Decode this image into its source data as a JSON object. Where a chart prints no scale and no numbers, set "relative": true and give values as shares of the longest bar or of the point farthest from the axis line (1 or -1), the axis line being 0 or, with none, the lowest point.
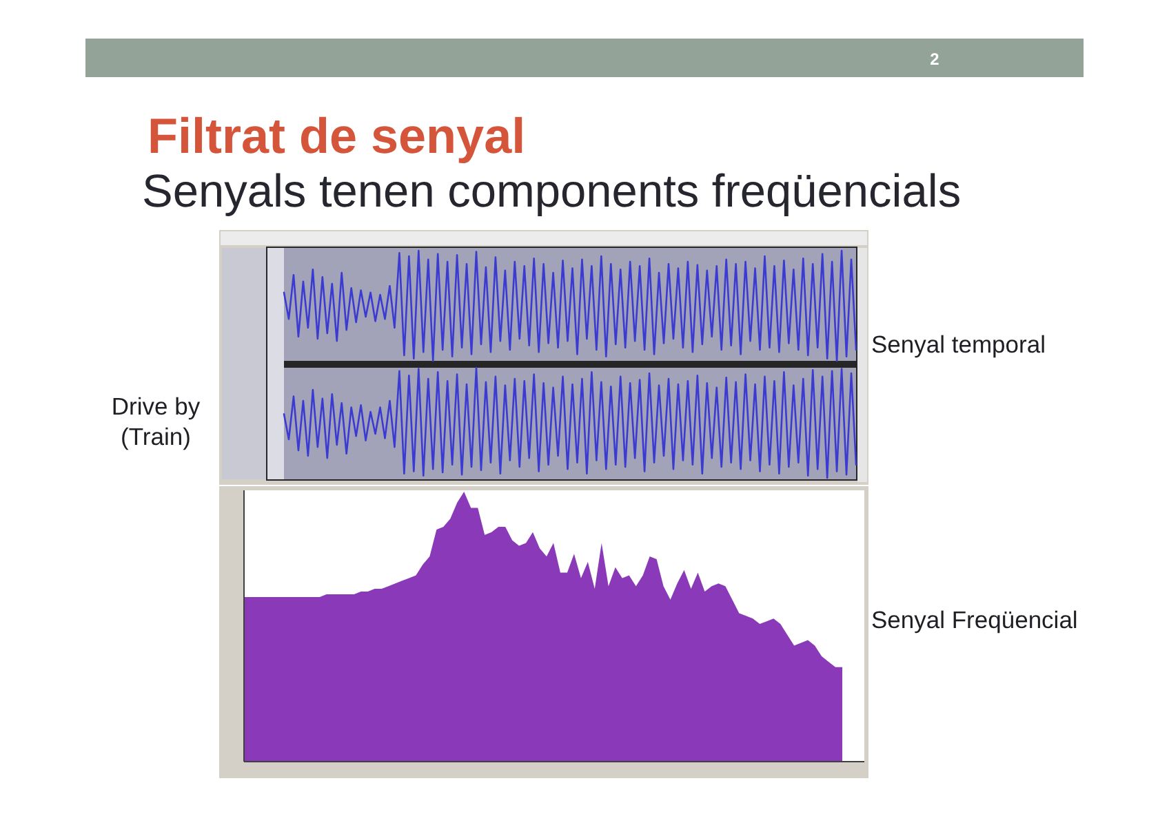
{
  "chart_data": [
    {
      "type": "line",
      "relative": true,
      "title": "Filtrat de senyal",
      "subtitle": "Senyals tenen components freqüencials",
      "annotations": [
        "2",
        "Senyal temporal"
      ],
      "categories": [
        null,
        null,
        null,
        null,
        null,
        null,
        null,
        null,
        null,
        null,
        null,
        null,
        null,
        null,
        null,
        null,
        null,
        null,
        null,
        null,
        null,
        null,
        null,
        null,
        null,
        null,
        null,
        null,
        null,
        null,
        null,
        null,
        null,
        null,
        null,
        null,
        null,
        null,
        null,
        null,
        null,
        null,
        null,
        null,
        null,
        null,
        null,
        null,
        null,
        null,
        null,
        null,
        null,
        null,
        null,
        null,
        null,
        null,
        null,
        null,
        null,
        null,
        null,
        null,
        null,
        null,
        null,
        null,
        null,
        null,
        null,
        null,
        null,
        null,
        null,
        null,
        null,
        null,
        null,
        null,
        null,
        null,
        null,
        null,
        null,
        null,
        null,
        null,
        null,
        null,
        null,
        null,
        null,
        null,
        null,
        null,
        null,
        null,
        null,
        null,
        null,
        null,
        null,
        null,
        null,
        null,
        null,
        null,
        null,
        null,
        null,
        null,
        null,
        null,
        null,
        null,
        null,
        null,
        null,
        null
      ],
      "series": [
        {
          "color": "#3b3bd1",
          "values": [
            0.62,
            0.38,
            0.78,
            0.22,
            0.72,
            0.3,
            0.83,
            0.2,
            0.76,
            0.25,
            0.7,
            0.18,
            0.8,
            0.28,
            0.66,
            0.35,
            0.64,
            0.4,
            0.62,
            0.36,
            0.6,
            0.38,
            0.68,
            0.3,
            0.98,
            0.05,
            0.95,
            0.02,
            1,
            0.08,
            0.92,
            0,
            0.97,
            0.1,
            0.9,
            0.04,
            0.96,
            0.12,
            0.88,
            0.06,
            0.99,
            0.15,
            0.85,
            0.08,
            0.94,
            0.18,
            0.82,
            0.1,
            0.9,
            0.2,
            0.86,
            0.14,
            0.93,
            0.08,
            0.88,
            0.16,
            0.8,
            0.12,
            0.91,
            0.18,
            0.84,
            0.06,
            0.92,
            0.2,
            0.86,
            0.1,
            0.95,
            0.04,
            0.88,
            0.15,
            0.83,
            0.12,
            0.9,
            0.18,
            0.86,
            0.1,
            0.93,
            0.06,
            0.8,
            0.16,
            0.88,
            0.2,
            0.84,
            0.12,
            0.9,
            0.08,
            0.87,
            0.15,
            0.82,
            0.22,
            0.86,
            0.1,
            0.92,
            0.14,
            0.88,
            0.06,
            0.9,
            0.18,
            0.84,
            0.1,
            0.95,
            0.12,
            0.86,
            0.08,
            0.91,
            0.16,
            0.83,
            0.1,
            0.93,
            0.05,
            0.88,
            0.12,
            0.97,
            0.02,
            0.9,
            0,
            1,
            0.04,
            0.92,
            0.1
          ]
        }
      ]
    },
    {
      "type": "line",
      "relative": true,
      "annotations": [
        "Drive by\n(Train)"
      ],
      "categories": [
        null,
        null,
        null,
        null,
        null,
        null,
        null,
        null,
        null,
        null,
        null,
        null,
        null,
        null,
        null,
        null,
        null,
        null,
        null,
        null,
        null,
        null,
        null,
        null,
        null,
        null,
        null,
        null,
        null,
        null,
        null,
        null,
        null,
        null,
        null,
        null,
        null,
        null,
        null,
        null,
        null,
        null,
        null,
        null,
        null,
        null,
        null,
        null,
        null,
        null,
        null,
        null,
        null,
        null,
        null,
        null,
        null,
        null,
        null,
        null,
        null,
        null,
        null,
        null,
        null,
        null,
        null,
        null,
        null,
        null,
        null,
        null,
        null,
        null,
        null,
        null,
        null,
        null,
        null,
        null,
        null,
        null,
        null,
        null,
        null,
        null,
        null,
        null,
        null,
        null,
        null,
        null,
        null,
        null,
        null,
        null,
        null,
        null,
        null,
        null,
        null,
        null,
        null,
        null,
        null,
        null,
        null,
        null,
        null,
        null,
        null,
        null,
        null,
        null,
        null,
        null,
        null,
        null,
        null,
        null
      ],
      "series": [
        {
          "color": "#3b3bd1",
          "values": [
            0.58,
            0.35,
            0.74,
            0.25,
            0.7,
            0.2,
            0.8,
            0.28,
            0.72,
            0.18,
            0.76,
            0.3,
            0.68,
            0.22,
            0.64,
            0.38,
            0.66,
            0.34,
            0.6,
            0.4,
            0.64,
            0.36,
            0.7,
            0.28,
            0.97,
            0.04,
            0.93,
            0.06,
            0.99,
            0.02,
            0.9,
            0.08,
            0.96,
            0.05,
            0.88,
            0.12,
            0.94,
            0.03,
            0.85,
            0.1,
            1,
            0.07,
            0.87,
            0.14,
            0.92,
            0.04,
            0.84,
            0.16,
            0.9,
            0.1,
            0.88,
            0.18,
            0.94,
            0.06,
            0.86,
            0.12,
            0.82,
            0.2,
            0.92,
            0.08,
            0.85,
            0.14,
            0.9,
            0.04,
            0.96,
            0.16,
            0.87,
            0.08,
            0.83,
            0.12,
            0.92,
            0.1,
            0.86,
            0.18,
            0.89,
            0.06,
            0.95,
            0.14,
            0.84,
            0.2,
            0.9,
            0.08,
            0.85,
            0.16,
            0.88,
            0.12,
            0.93,
            0.04,
            0.86,
            0.18,
            0.82,
            0.1,
            0.91,
            0.14,
            0.87,
            0.08,
            0.94,
            0.16,
            0.85,
            0.06,
            0.92,
            0.12,
            0.88,
            0.04,
            0.96,
            0.1,
            0.84,
            0.14,
            0.9,
            0.02,
            0.98,
            0.08,
            0.92,
            0,
            0.97,
            0.06,
            0.99,
            0.03,
            0.95,
            0.12
          ]
        }
      ]
    },
    {
      "type": "area",
      "relative": true,
      "annotations": [
        "Senyal Freqüencial"
      ],
      "categories": [
        null,
        null,
        null,
        null,
        null,
        null,
        null,
        null,
        null,
        null,
        null,
        null,
        null,
        null,
        null,
        null,
        null,
        null,
        null,
        null,
        null,
        null,
        null,
        null,
        null,
        null,
        null,
        null,
        null,
        null,
        null,
        null,
        null,
        null,
        null,
        null,
        null,
        null,
        null,
        null,
        null,
        null,
        null,
        null,
        null,
        null,
        null,
        null,
        null,
        null,
        null,
        null,
        null,
        null,
        null,
        null,
        null,
        null,
        null,
        null,
        null,
        null,
        null,
        null,
        null,
        null,
        null,
        null,
        null,
        null,
        null,
        null,
        null,
        null,
        null,
        null,
        null,
        null,
        null,
        null,
        null,
        null,
        null,
        null,
        null,
        null,
        null,
        null
      ],
      "series": [
        {
          "color": "#8a3ab9",
          "values": [
            0.61,
            0.61,
            0.61,
            0.61,
            0.61,
            0.61,
            0.61,
            0.61,
            0.61,
            0.61,
            0.61,
            0.61,
            0.62,
            0.62,
            0.62,
            0.62,
            0.62,
            0.63,
            0.63,
            0.64,
            0.64,
            0.65,
            0.66,
            0.67,
            0.68,
            0.69,
            0.73,
            0.76,
            0.86,
            0.87,
            0.9,
            0.96,
            1,
            0.94,
            0.94,
            0.84,
            0.85,
            0.87,
            0.87,
            0.82,
            0.8,
            0.81,
            0.85,
            0.79,
            0.76,
            0.81,
            0.7,
            0.7,
            0.77,
            0.68,
            0.74,
            0.64,
            0.81,
            0.65,
            0.72,
            0.68,
            0.69,
            0.65,
            0.69,
            0.76,
            0.75,
            0.65,
            0.6,
            0.66,
            0.71,
            0.64,
            0.7,
            0.63,
            0.65,
            0.66,
            0.65,
            0.6,
            0.55,
            0.54,
            0.53,
            0.51,
            0.52,
            0.53,
            0.51,
            0.47,
            0.43,
            0.44,
            0.45,
            0.43,
            0.39,
            0.37,
            0.35,
            0.35
          ]
        }
      ]
    }
  ]
}
